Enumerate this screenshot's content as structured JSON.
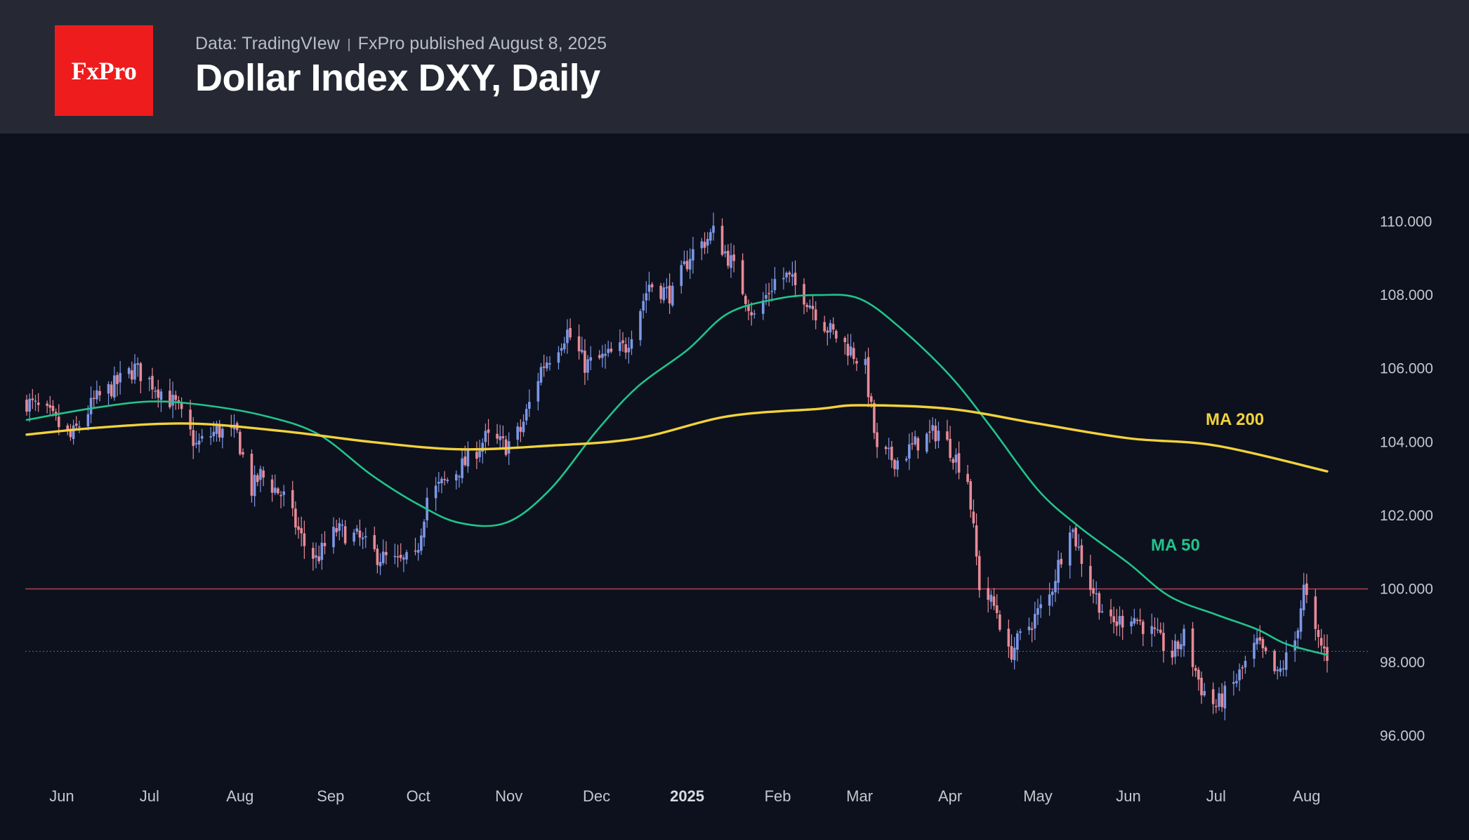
{
  "header": {
    "logo_text": "FxPro",
    "source": "Data: TradingVIew",
    "published": "FxPro published August 8, 2025",
    "title": "Dollar Index DXY, Daily"
  },
  "colors": {
    "header_bg": "#262934",
    "chart_bg": "#0c111d",
    "logo_red": "#ee1c1c",
    "candle_up": "#7d97e6",
    "candle_down": "#e88a96",
    "ma50": "#22c38b",
    "ma200": "#f2d23c",
    "level_line": "#b3424e"
  },
  "chart_data": {
    "type": "candlestick",
    "title": "Dollar Index DXY, Daily",
    "ylim": [
      95.0,
      111.5
    ],
    "y_ticks": [
      "110.000",
      "108.000",
      "106.000",
      "104.000",
      "102.000",
      "100.000",
      "98.000",
      "96.000"
    ],
    "x_ticks": [
      "Jun",
      "Jul",
      "Aug",
      "Sep",
      "Oct",
      "Nov",
      "Dec",
      "2025",
      "Feb",
      "Mar",
      "Apr",
      "May",
      "Jun",
      "Jul",
      "Aug"
    ],
    "x_ticks_bold": [
      "2025"
    ],
    "horizontal_level": 100.0,
    "last_price_dotted": 98.3,
    "close_path": [
      [
        "2024-05-20",
        105.1
      ],
      [
        "2024-05-28",
        104.7
      ],
      [
        "2024-06-04",
        104.1
      ],
      [
        "2024-06-12",
        105.1
      ],
      [
        "2024-06-20",
        105.6
      ],
      [
        "2024-06-26",
        106.0
      ],
      [
        "2024-07-02",
        105.6
      ],
      [
        "2024-07-10",
        105.0
      ],
      [
        "2024-07-17",
        103.9
      ],
      [
        "2024-07-24",
        104.3
      ],
      [
        "2024-07-31",
        104.2
      ],
      [
        "2024-08-05",
        102.7
      ],
      [
        "2024-08-08",
        103.1
      ],
      [
        "2024-08-16",
        102.5
      ],
      [
        "2024-08-23",
        101.2
      ],
      [
        "2024-08-27",
        100.8
      ],
      [
        "2024-09-03",
        101.6
      ],
      [
        "2024-09-10",
        101.4
      ],
      [
        "2024-09-17",
        100.9
      ],
      [
        "2024-09-24",
        100.7
      ],
      [
        "2024-09-30",
        100.8
      ],
      [
        "2024-10-04",
        102.5
      ],
      [
        "2024-10-10",
        102.9
      ],
      [
        "2024-10-18",
        103.5
      ],
      [
        "2024-10-24",
        104.1
      ],
      [
        "2024-10-31",
        103.9
      ],
      [
        "2024-11-05",
        104.3
      ],
      [
        "2024-11-12",
        106.0
      ],
      [
        "2024-11-21",
        107.0
      ],
      [
        "2024-11-27",
        106.1
      ],
      [
        "2024-12-04",
        106.3
      ],
      [
        "2024-12-11",
        106.6
      ],
      [
        "2024-12-19",
        108.3
      ],
      [
        "2024-12-27",
        108.0
      ],
      [
        "2025-01-02",
        109.1
      ],
      [
        "2025-01-10",
        109.7
      ],
      [
        "2025-01-16",
        108.9
      ],
      [
        "2025-01-24",
        107.4
      ],
      [
        "2025-01-31",
        108.4
      ],
      [
        "2025-02-04",
        108.5
      ],
      [
        "2025-02-11",
        107.9
      ],
      [
        "2025-02-18",
        107.1
      ],
      [
        "2025-02-26",
        106.5
      ],
      [
        "2025-03-03",
        106.0
      ],
      [
        "2025-03-07",
        103.7
      ],
      [
        "2025-03-14",
        103.5
      ],
      [
        "2025-03-21",
        104.0
      ],
      [
        "2025-03-28",
        104.3
      ],
      [
        "2025-04-02",
        103.7
      ],
      [
        "2025-04-07",
        103.0
      ],
      [
        "2025-04-11",
        100.1
      ],
      [
        "2025-04-17",
        99.4
      ],
      [
        "2025-04-21",
        98.2
      ],
      [
        "2025-04-28",
        99.0
      ],
      [
        "2025-05-05",
        99.8
      ],
      [
        "2025-05-12",
        101.8
      ],
      [
        "2025-05-19",
        100.1
      ],
      [
        "2025-05-26",
        99.0
      ],
      [
        "2025-06-02",
        99.3
      ],
      [
        "2025-06-09",
        98.8
      ],
      [
        "2025-06-16",
        98.2
      ],
      [
        "2025-06-20",
        98.7
      ],
      [
        "2025-06-26",
        97.3
      ],
      [
        "2025-07-01",
        96.8
      ],
      [
        "2025-07-07",
        97.4
      ],
      [
        "2025-07-15",
        98.5
      ],
      [
        "2025-07-22",
        97.6
      ],
      [
        "2025-07-28",
        98.6
      ],
      [
        "2025-07-31",
        100.0
      ],
      [
        "2025-08-04",
        98.7
      ],
      [
        "2025-08-08",
        98.2
      ]
    ],
    "series": [
      {
        "name": "MA 50",
        "points": [
          [
            "2024-05-20",
            104.6
          ],
          [
            "2024-06-10",
            104.9
          ],
          [
            "2024-07-01",
            105.1
          ],
          [
            "2024-07-20",
            105.0
          ],
          [
            "2024-08-10",
            104.7
          ],
          [
            "2024-08-28",
            104.2
          ],
          [
            "2024-09-15",
            103.1
          ],
          [
            "2024-10-01",
            102.3
          ],
          [
            "2024-10-15",
            101.8
          ],
          [
            "2024-10-31",
            101.8
          ],
          [
            "2024-11-15",
            102.7
          ],
          [
            "2024-12-01",
            104.3
          ],
          [
            "2024-12-15",
            105.5
          ],
          [
            "2025-01-01",
            106.5
          ],
          [
            "2025-01-15",
            107.5
          ],
          [
            "2025-02-01",
            107.9
          ],
          [
            "2025-02-15",
            108.0
          ],
          [
            "2025-03-01",
            107.9
          ],
          [
            "2025-03-15",
            107.1
          ],
          [
            "2025-04-01",
            105.8
          ],
          [
            "2025-04-15",
            104.4
          ],
          [
            "2025-05-01",
            102.7
          ],
          [
            "2025-05-15",
            101.7
          ],
          [
            "2025-06-01",
            100.7
          ],
          [
            "2025-06-15",
            99.8
          ],
          [
            "2025-07-01",
            99.3
          ],
          [
            "2025-07-15",
            98.9
          ],
          [
            "2025-07-25",
            98.5
          ],
          [
            "2025-08-08",
            98.2
          ]
        ]
      },
      {
        "name": "MA 200",
        "points": [
          [
            "2024-05-20",
            104.2
          ],
          [
            "2024-06-15",
            104.4
          ],
          [
            "2024-07-15",
            104.5
          ],
          [
            "2024-08-15",
            104.3
          ],
          [
            "2024-09-15",
            104.0
          ],
          [
            "2024-10-15",
            103.8
          ],
          [
            "2024-11-15",
            103.9
          ],
          [
            "2024-12-15",
            104.1
          ],
          [
            "2025-01-15",
            104.7
          ],
          [
            "2025-02-15",
            104.9
          ],
          [
            "2025-03-01",
            105.0
          ],
          [
            "2025-04-01",
            104.9
          ],
          [
            "2025-05-01",
            104.5
          ],
          [
            "2025-06-01",
            104.1
          ],
          [
            "2025-07-01",
            103.9
          ],
          [
            "2025-08-08",
            103.2
          ]
        ]
      }
    ]
  }
}
